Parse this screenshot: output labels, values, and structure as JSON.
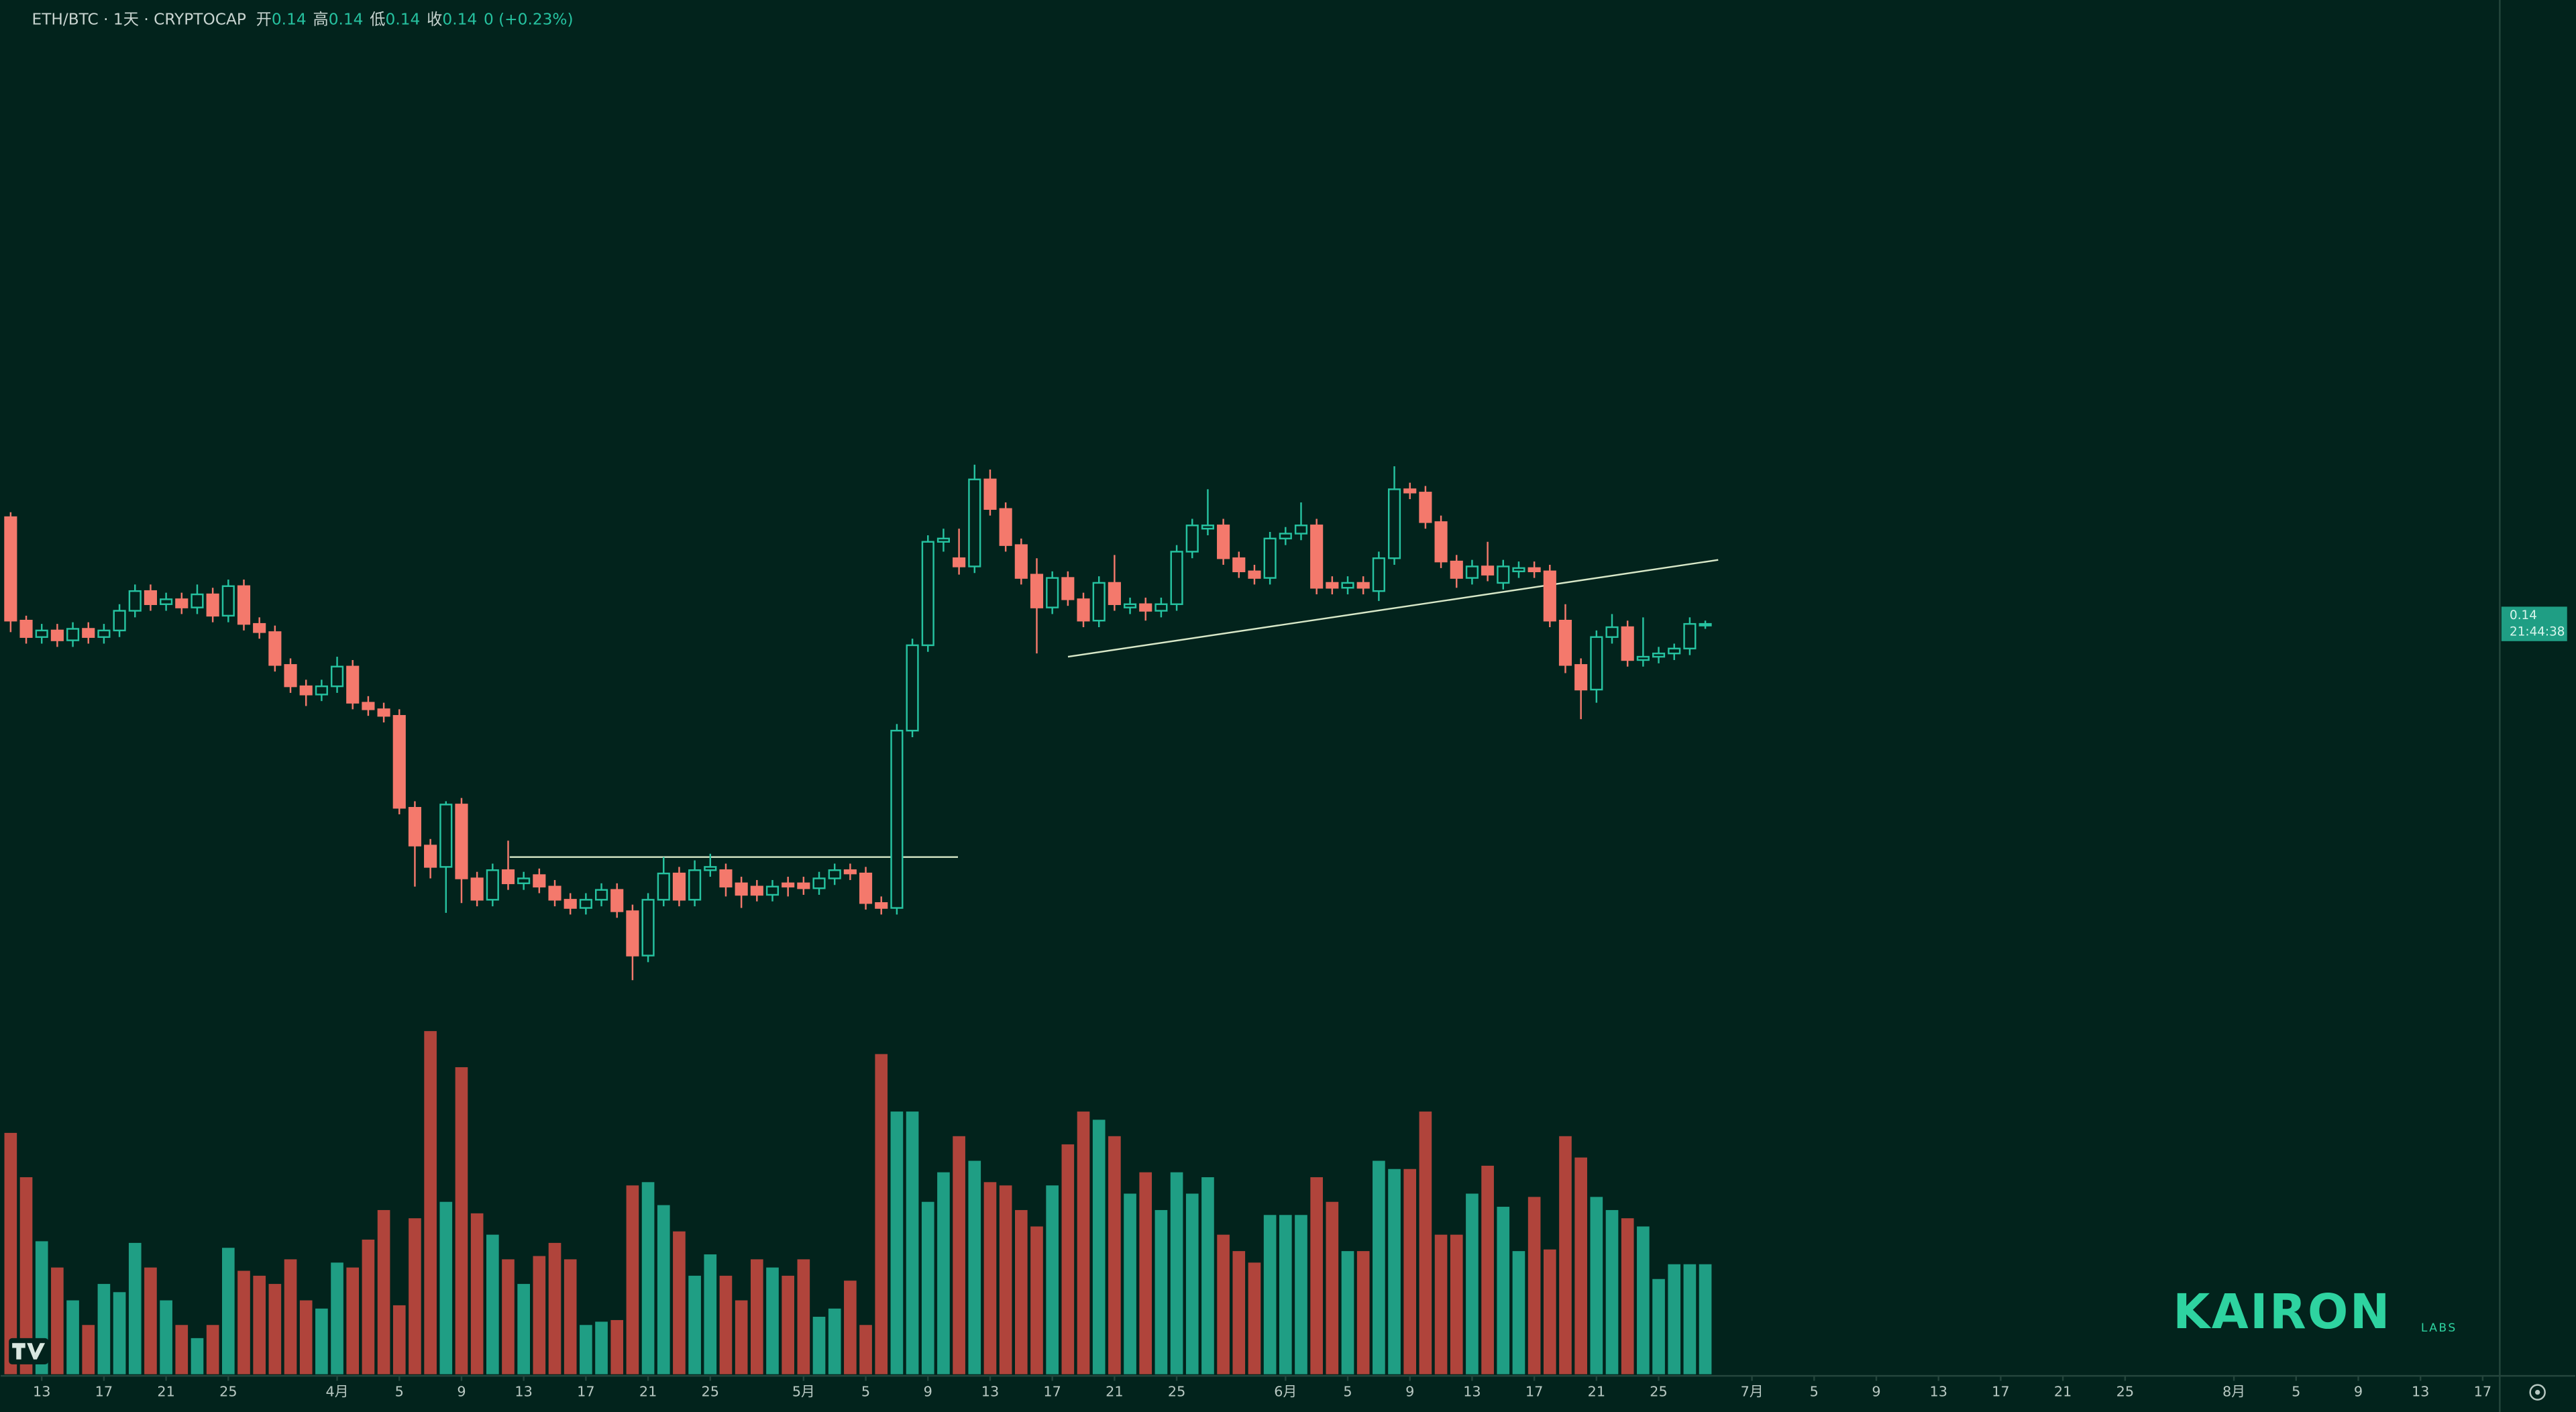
{
  "chart_data": {
    "type": "candlestick",
    "title": "ETH/BTC · 1天 · CRYPTOCAP",
    "header_stats": [
      {
        "label": "开",
        "value": 0.14
      },
      {
        "label": "高",
        "value": 0.14
      },
      {
        "label": "低",
        "value": 0.14
      },
      {
        "label": "收",
        "value": 0.14
      }
    ],
    "change": 0,
    "change_percent": "(+0.23%)",
    "last_price": 0.14,
    "countdown": "21:44:38",
    "up_color": "#26c2a0",
    "down_color": "#f4796c",
    "volume_up_color": "#1f9e84",
    "volume_down_color": "#b0443b",
    "xlim": [
      -0.64,
      160.1
    ],
    "ylim": [
      0.1162,
      0.1782
    ],
    "xticks": [
      {
        "value": 2,
        "label": "13"
      },
      {
        "value": 6,
        "label": "17"
      },
      {
        "value": 10,
        "label": "21"
      },
      {
        "value": 14,
        "label": "25"
      },
      {
        "value": 21,
        "label": "4月"
      },
      {
        "value": 25,
        "label": "5"
      },
      {
        "value": 29,
        "label": "9"
      },
      {
        "value": 33,
        "label": "13"
      },
      {
        "value": 37,
        "label": "17"
      },
      {
        "value": 41,
        "label": "21"
      },
      {
        "value": 45,
        "label": "25"
      },
      {
        "value": 51,
        "label": "5月"
      },
      {
        "value": 55,
        "label": "5"
      },
      {
        "value": 59,
        "label": "9"
      },
      {
        "value": 63,
        "label": "13"
      },
      {
        "value": 67,
        "label": "17"
      },
      {
        "value": 71,
        "label": "21"
      },
      {
        "value": 75,
        "label": "25"
      },
      {
        "value": 82,
        "label": "6月"
      },
      {
        "value": 86,
        "label": "5"
      },
      {
        "value": 90,
        "label": "9"
      },
      {
        "value": 94,
        "label": "13"
      },
      {
        "value": 98,
        "label": "17"
      },
      {
        "value": 102,
        "label": "21"
      },
      {
        "value": 106,
        "label": "25"
      },
      {
        "value": 112,
        "label": "7月"
      },
      {
        "value": 116,
        "label": "5"
      },
      {
        "value": 120,
        "label": "9"
      },
      {
        "value": 124,
        "label": "13"
      },
      {
        "value": 128,
        "label": "17"
      },
      {
        "value": 132,
        "label": "21"
      },
      {
        "value": 136,
        "label": "25"
      },
      {
        "value": 143,
        "label": "8月"
      },
      {
        "value": 147,
        "label": "5"
      },
      {
        "value": 151,
        "label": "9"
      },
      {
        "value": 155,
        "label": "13"
      },
      {
        "value": 159,
        "label": "17"
      }
    ],
    "open": [
      0.1467,
      0.1404,
      0.1394,
      0.1398,
      0.1392,
      0.1399,
      0.1394,
      0.1398,
      0.141,
      0.1422,
      0.1414,
      0.1417,
      0.1412,
      0.142,
      0.1407,
      0.1425,
      0.1402,
      0.1397,
      0.1377,
      0.1364,
      0.1359,
      0.1364,
      0.1376,
      0.1354,
      0.135,
      0.1346,
      0.129,
      0.1267,
      0.1254,
      0.1292,
      0.1247,
      0.1234,
      0.1252,
      0.1244,
      0.1249,
      0.1242,
      0.1234,
      0.1229,
      0.1234,
      0.124,
      0.1227,
      0.12,
      0.1234,
      0.125,
      0.1234,
      0.1252,
      0.1252,
      0.1244,
      0.1242,
      0.1237,
      0.1244,
      0.1244,
      0.1241,
      0.1247,
      0.1252,
      0.125,
      0.1232,
      0.1229,
      0.1337,
      0.1389,
      0.1452,
      0.1442,
      0.1437,
      0.149,
      0.1472,
      0.145,
      0.1432,
      0.1412,
      0.143,
      0.1417,
      0.1404,
      0.1427,
      0.1412,
      0.1414,
      0.141,
      0.1414,
      0.1446,
      0.146,
      0.1462,
      0.1442,
      0.1434,
      0.143,
      0.1454,
      0.1457,
      0.1462,
      0.1427,
      0.1424,
      0.1427,
      0.1422,
      0.1442,
      0.1484,
      0.1482,
      0.1464,
      0.144,
      0.143,
      0.1437,
      0.1427,
      0.1434,
      0.1436,
      0.1434,
      0.1404,
      0.1377,
      0.1362,
      0.1394,
      0.14,
      0.138,
      0.1382,
      0.1384,
      0.1387,
      0.1401
    ],
    "high": [
      0.147,
      0.1407,
      0.1402,
      0.1402,
      0.1403,
      0.1403,
      0.1402,
      0.1414,
      0.1426,
      0.1426,
      0.1421,
      0.1421,
      0.1426,
      0.1424,
      0.1429,
      0.1429,
      0.1406,
      0.1401,
      0.1381,
      0.1368,
      0.1368,
      0.1382,
      0.138,
      0.1358,
      0.1354,
      0.135,
      0.1294,
      0.1271,
      0.1294,
      0.1296,
      0.1251,
      0.1256,
      0.127,
      0.1251,
      0.1253,
      0.1246,
      0.1238,
      0.1238,
      0.1244,
      0.1244,
      0.1231,
      0.1238,
      0.126,
      0.1254,
      0.1258,
      0.1262,
      0.1256,
      0.1248,
      0.1246,
      0.1246,
      0.1248,
      0.1248,
      0.1251,
      0.1256,
      0.1256,
      0.1254,
      0.1236,
      0.1341,
      0.1393,
      0.1456,
      0.146,
      0.146,
      0.1499,
      0.1496,
      0.1476,
      0.1454,
      0.1442,
      0.1434,
      0.1434,
      0.1421,
      0.1431,
      0.1444,
      0.1418,
      0.1418,
      0.1418,
      0.145,
      0.1466,
      0.1484,
      0.1466,
      0.1446,
      0.1438,
      0.1458,
      0.1461,
      0.1476,
      0.1466,
      0.1431,
      0.1431,
      0.1431,
      0.1446,
      0.1498,
      0.1488,
      0.1486,
      0.1468,
      0.1444,
      0.1441,
      0.1452,
      0.1441,
      0.144,
      0.144,
      0.1438,
      0.1414,
      0.1381,
      0.1398,
      0.1408,
      0.1404,
      0.1406,
      0.1388,
      0.139,
      0.1406,
      0.1404
    ],
    "low": [
      0.1397,
      0.139,
      0.139,
      0.1388,
      0.1388,
      0.139,
      0.139,
      0.1394,
      0.1406,
      0.141,
      0.141,
      0.1408,
      0.1408,
      0.1403,
      0.1403,
      0.1398,
      0.1393,
      0.1373,
      0.136,
      0.1352,
      0.1355,
      0.136,
      0.135,
      0.1346,
      0.1342,
      0.1286,
      0.1242,
      0.1247,
      0.1226,
      0.1232,
      0.123,
      0.123,
      0.124,
      0.124,
      0.1238,
      0.123,
      0.1225,
      0.1225,
      0.123,
      0.1223,
      0.1185,
      0.1196,
      0.123,
      0.123,
      0.123,
      0.1248,
      0.1236,
      0.1229,
      0.1233,
      0.1233,
      0.1236,
      0.1237,
      0.1237,
      0.1243,
      0.1246,
      0.1228,
      0.1225,
      0.1225,
      0.1333,
      0.1385,
      0.1446,
      0.1432,
      0.1433,
      0.1468,
      0.1446,
      0.1426,
      0.1384,
      0.1408,
      0.1413,
      0.14,
      0.14,
      0.141,
      0.1408,
      0.1404,
      0.1406,
      0.141,
      0.1442,
      0.1456,
      0.1438,
      0.143,
      0.1426,
      0.1426,
      0.145,
      0.1453,
      0.142,
      0.142,
      0.142,
      0.142,
      0.1416,
      0.1438,
      0.1478,
      0.146,
      0.1436,
      0.1424,
      0.1426,
      0.1428,
      0.1423,
      0.143,
      0.143,
      0.14,
      0.1372,
      0.1344,
      0.1354,
      0.139,
      0.1376,
      0.1376,
      0.1378,
      0.138,
      0.1383,
      0.1399
    ],
    "close": [
      0.1404,
      0.1394,
      0.1398,
      0.1392,
      0.1399,
      0.1394,
      0.1398,
      0.141,
      0.1422,
      0.1414,
      0.1417,
      0.1412,
      0.142,
      0.1407,
      0.1425,
      0.1402,
      0.1397,
      0.1377,
      0.1364,
      0.1359,
      0.1364,
      0.1376,
      0.1354,
      0.135,
      0.1346,
      0.129,
      0.1267,
      0.1254,
      0.1292,
      0.1247,
      0.1234,
      0.1252,
      0.1244,
      0.1247,
      0.1242,
      0.1234,
      0.1229,
      0.1234,
      0.124,
      0.1227,
      0.12,
      0.1234,
      0.125,
      0.1234,
      0.1252,
      0.1254,
      0.1242,
      0.1237,
      0.1237,
      0.1242,
      0.1242,
      0.1241,
      0.1247,
      0.1252,
      0.125,
      0.1232,
      0.1229,
      0.1337,
      0.1389,
      0.1452,
      0.1454,
      0.1437,
      0.149,
      0.1472,
      0.145,
      0.143,
      0.1412,
      0.143,
      0.1417,
      0.1404,
      0.1427,
      0.1414,
      0.1414,
      0.141,
      0.1414,
      0.1446,
      0.1462,
      0.1462,
      0.1442,
      0.1434,
      0.143,
      0.1454,
      0.1457,
      0.1462,
      0.1424,
      0.1424,
      0.1427,
      0.1424,
      0.1442,
      0.1484,
      0.1482,
      0.1464,
      0.144,
      0.143,
      0.1437,
      0.1432,
      0.1437,
      0.1436,
      0.1434,
      0.1404,
      0.1377,
      0.1362,
      0.1394,
      0.14,
      0.138,
      0.1382,
      0.1384,
      0.1387,
      0.1402,
      0.1402
    ],
    "volume": [
      147,
      120,
      81,
      65,
      45,
      30,
      55,
      50,
      80,
      65,
      45,
      30,
      22,
      30,
      77,
      63,
      60,
      55,
      70,
      45,
      40,
      68,
      65,
      82,
      100,
      42,
      95,
      209,
      105,
      187,
      98,
      85,
      70,
      55,
      72,
      80,
      70,
      30,
      32,
      33,
      115,
      117,
      103,
      87,
      60,
      73,
      60,
      45,
      70,
      65,
      60,
      70,
      35,
      40,
      57,
      30,
      195,
      160,
      160,
      105,
      123,
      145,
      130,
      117,
      115,
      100,
      90,
      115,
      140,
      160,
      155,
      145,
      110,
      123,
      100,
      123,
      110,
      120,
      85,
      75,
      68,
      97,
      97,
      97,
      120,
      105,
      75,
      75,
      130,
      125,
      125,
      160,
      85,
      85,
      110,
      127,
      102,
      75,
      108,
      76,
      145,
      132,
      108,
      100,
      95,
      90,
      58,
      67,
      67,
      67
    ],
    "watermark": "KAIRON",
    "watermark_sub": "LABS"
  }
}
